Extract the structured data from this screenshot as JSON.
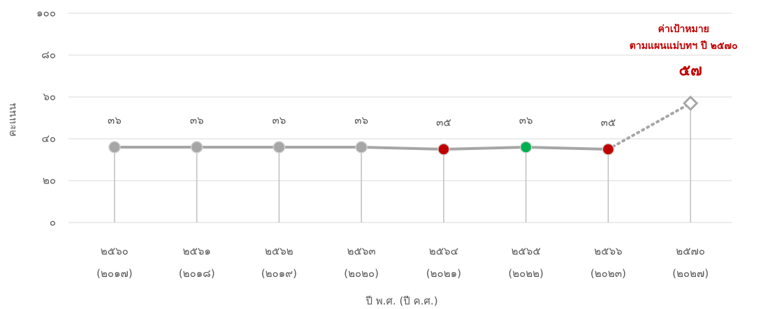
{
  "chart_data": {
    "type": "line",
    "y_label": "คะแนน",
    "x_label": "ปี พ.ศ. (ปี ค.ศ.)",
    "categories": [
      "๒๕๖๐ (๒๐๑๗)",
      "๒๕๖๑ (๒๐๑๘)",
      "๒๕๖๒ (๒๐๑๙)",
      "๒๕๖๓ (๒๐๒๐)",
      "๒๕๖๔ (๒๐๒๑)",
      "๒๕๖๕ (๒๐๒๒)",
      "๒๕๖๖ (๒๐๒๓)",
      "๒๕๗๐ (๒๐๒๗)"
    ],
    "series": [
      {
        "color": "#a6a6a6",
        "marker": "circle",
        "point_colors": [
          "#a6a6a6",
          "#a6a6a6",
          "#a6a6a6",
          "#a6a6a6",
          "#c00000",
          "#00b050",
          "#c00000",
          null
        ],
        "values": [
          36,
          36,
          36,
          36,
          35,
          36,
          35,
          null
        ],
        "value_labels": [
          "๓๖",
          "๓๖",
          "๓๖",
          "๓๖",
          "๓๕",
          "๓๖",
          "๓๕",
          null
        ]
      },
      {
        "color": "#a6a6a6",
        "marker": "diamond",
        "dashed": true,
        "label_color": "#c00000",
        "values": [
          null,
          null,
          null,
          null,
          null,
          null,
          null,
          57
        ],
        "value_labels": [
          null,
          null,
          null,
          null,
          null,
          null,
          null,
          "๕๗"
        ]
      }
    ],
    "annotation": [
      "ค่าเป้าหมาย",
      "ตามแผนแม่บทฯ ปี ๒๕๗๐"
    ],
    "ylim": [
      0,
      100
    ],
    "yticks": [
      {
        "value": 0,
        "label": "๐"
      },
      {
        "value": 20,
        "label": "๒๐"
      },
      {
        "value": 40,
        "label": "๔๐"
      },
      {
        "value": 60,
        "label": "๖๐"
      },
      {
        "value": 80,
        "label": "๘๐"
      },
      {
        "value": 100,
        "label": "๑๐๐"
      }
    ],
    "grid": true
  }
}
